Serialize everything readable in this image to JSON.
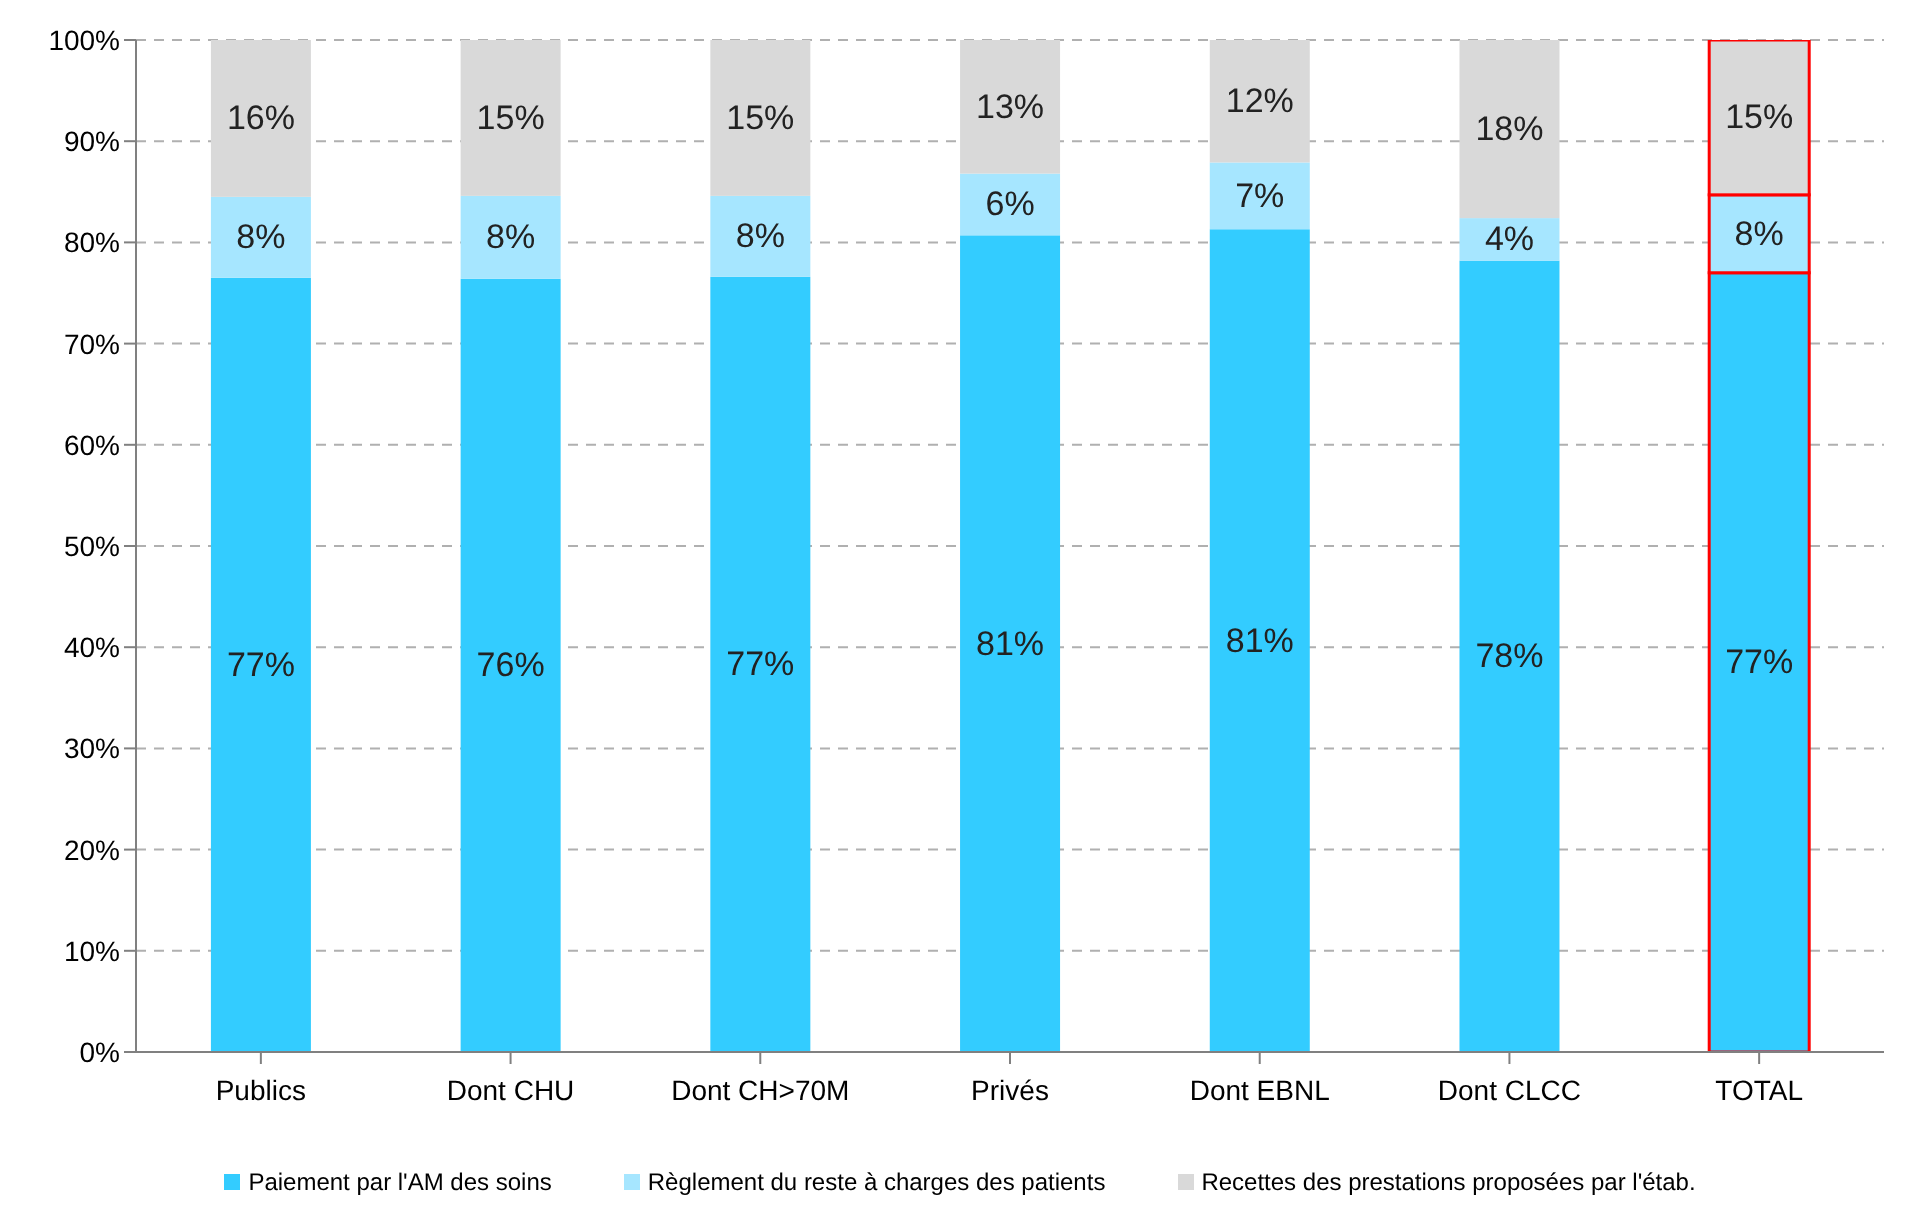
{
  "chart_data": {
    "type": "bar",
    "stacked": true,
    "categories": [
      "Publics",
      "Dont CHU",
      "Dont CH>70M",
      "Privés",
      "Dont EBNL",
      "Dont CLCC",
      "TOTAL"
    ],
    "series": [
      {
        "name": "Paiement par l'AM des soins",
        "color": "#33ccff",
        "values": [
          76.5,
          76.4,
          76.6,
          80.7,
          81.3,
          78.2,
          77.0
        ],
        "value_labels": [
          "77%",
          "76%",
          "77%",
          "81%",
          "81%",
          "78%",
          "77%"
        ]
      },
      {
        "name": "Règlement du reste à charges des patients",
        "color": "#a6e6ff",
        "values": [
          8.0,
          8.2,
          8.0,
          6.1,
          6.6,
          4.2,
          7.7
        ],
        "value_labels": [
          "8%",
          "8%",
          "8%",
          "6%",
          "7%",
          "4%",
          "8%"
        ]
      },
      {
        "name": "Recettes des prestations proposées par l'étab.",
        "color": "#d9d9d9",
        "values": [
          15.5,
          15.4,
          15.4,
          13.2,
          12.1,
          17.6,
          15.3
        ],
        "value_labels": [
          "16%",
          "15%",
          "15%",
          "13%",
          "12%",
          "18%",
          "15%"
        ]
      }
    ],
    "ylim": [
      0,
      100
    ],
    "yticks": [
      {
        "value": 0,
        "label": "0%"
      },
      {
        "value": 10,
        "label": "10%"
      },
      {
        "value": 20,
        "label": "20%"
      },
      {
        "value": 30,
        "label": "30%"
      },
      {
        "value": 40,
        "label": "40%"
      },
      {
        "value": 50,
        "label": "50%"
      },
      {
        "value": 60,
        "label": "60%"
      },
      {
        "value": 70,
        "label": "70%"
      },
      {
        "value": 80,
        "label": "80%"
      },
      {
        "value": 90,
        "label": "90%"
      },
      {
        "value": 100,
        "label": "100%"
      }
    ],
    "grid": "y",
    "legend": "bottom"
  }
}
